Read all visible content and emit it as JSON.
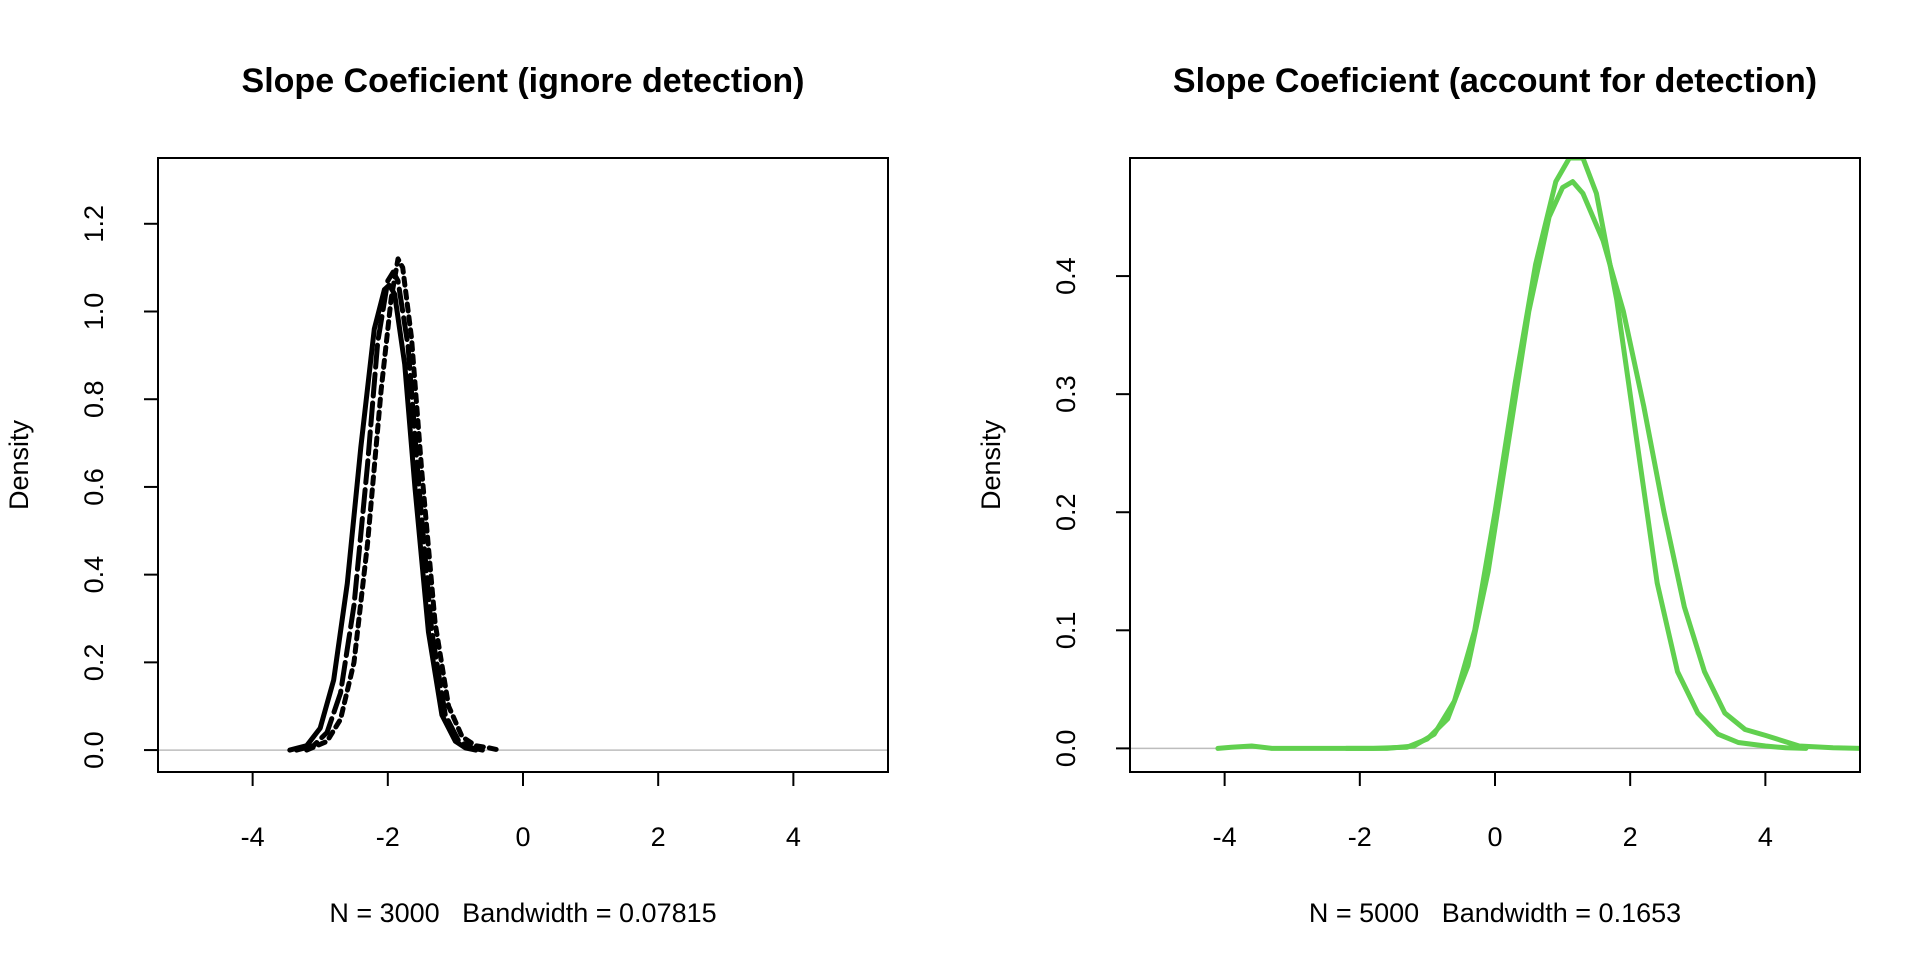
{
  "chart_data": [
    {
      "type": "line",
      "title": "Slope Coeficient (ignore detection)",
      "xlabel": "N = 3000   Bandwidth = 0.07815",
      "ylabel": "Density",
      "xlim": [
        -5.4,
        5.4
      ],
      "ylim": [
        -0.05,
        1.35
      ],
      "x_ticks": [
        -4,
        -2,
        0,
        2,
        4
      ],
      "y_ticks": [
        0.0,
        0.2,
        0.4,
        0.6,
        0.8,
        1.0,
        1.2
      ],
      "baseline": 0,
      "grid": false,
      "legend": "none",
      "series": [
        {
          "color": "#000000",
          "style": "solid",
          "x": [
            -3.45,
            -3.2,
            -3.0,
            -2.8,
            -2.6,
            -2.4,
            -2.2,
            -2.05,
            -1.98,
            -1.9,
            -1.75,
            -1.6,
            -1.4,
            -1.2,
            -1.0,
            -0.85,
            -0.7
          ],
          "y": [
            0.0,
            0.01,
            0.05,
            0.16,
            0.38,
            0.69,
            0.96,
            1.05,
            1.06,
            1.04,
            0.88,
            0.6,
            0.27,
            0.08,
            0.02,
            0.005,
            0.0
          ]
        },
        {
          "color": "#000000",
          "style": "dashed",
          "x": [
            -3.35,
            -3.1,
            -2.9,
            -2.7,
            -2.5,
            -2.3,
            -2.15,
            -2.0,
            -1.92,
            -1.85,
            -1.7,
            -1.55,
            -1.35,
            -1.15,
            -0.95,
            -0.75,
            -0.6
          ],
          "y": [
            0.0,
            0.01,
            0.04,
            0.13,
            0.33,
            0.65,
            0.93,
            1.07,
            1.09,
            1.07,
            0.92,
            0.62,
            0.27,
            0.08,
            0.02,
            0.005,
            0.0
          ]
        },
        {
          "color": "#000000",
          "style": "dotted",
          "x": [
            -3.2,
            -2.9,
            -2.7,
            -2.5,
            -2.3,
            -2.1,
            -1.95,
            -1.85,
            -1.78,
            -1.65,
            -1.5,
            -1.3,
            -1.1,
            -0.9,
            -0.7,
            -0.5,
            -0.35
          ],
          "y": [
            0.0,
            0.02,
            0.07,
            0.2,
            0.47,
            0.82,
            1.03,
            1.12,
            1.1,
            0.94,
            0.64,
            0.29,
            0.1,
            0.03,
            0.01,
            0.005,
            0.0
          ]
        }
      ]
    },
    {
      "type": "line",
      "title": "Slope Coeficient (account for detection)",
      "xlabel": "N = 5000   Bandwidth = 0.1653",
      "ylabel": "Density",
      "xlim": [
        -5.4,
        5.4
      ],
      "ylim": [
        -0.02,
        0.5
      ],
      "x_ticks": [
        -4,
        -2,
        0,
        2,
        4
      ],
      "y_ticks": [
        0.0,
        0.1,
        0.2,
        0.3,
        0.4
      ],
      "baseline": 0,
      "grid": false,
      "legend": "none",
      "series": [
        {
          "color": "#61D04F",
          "style": "solid",
          "x": [
            -4.1,
            -3.9,
            -3.6,
            -3.3,
            -2.5,
            -1.8,
            -1.3,
            -1.0,
            -0.7,
            -0.4,
            -0.1,
            0.2,
            0.5,
            0.8,
            1.0,
            1.15,
            1.3,
            1.6,
            1.9,
            2.2,
            2.5,
            2.8,
            3.1,
            3.4,
            3.7,
            4.0,
            4.5,
            5.0,
            5.4
          ],
          "y": [
            0.0,
            0.001,
            0.002,
            0.0,
            0.0,
            0.0,
            0.001,
            0.008,
            0.025,
            0.07,
            0.15,
            0.26,
            0.37,
            0.45,
            0.475,
            0.48,
            0.47,
            0.43,
            0.37,
            0.29,
            0.2,
            0.12,
            0.065,
            0.03,
            0.016,
            0.011,
            0.002,
            0.0005,
            0.0
          ]
        },
        {
          "color": "#61D04F",
          "style": "solid",
          "x": [
            -2.2,
            -1.6,
            -1.2,
            -0.9,
            -0.6,
            -0.3,
            0.0,
            0.3,
            0.6,
            0.9,
            1.1,
            1.3,
            1.5,
            1.8,
            2.1,
            2.4,
            2.7,
            3.0,
            3.3,
            3.6,
            4.0,
            4.3,
            4.6
          ],
          "y": [
            0.0,
            0.0,
            0.002,
            0.012,
            0.04,
            0.1,
            0.2,
            0.31,
            0.41,
            0.48,
            0.5,
            0.5,
            0.47,
            0.38,
            0.26,
            0.14,
            0.065,
            0.03,
            0.012,
            0.005,
            0.002,
            0.0005,
            0.0
          ]
        }
      ]
    }
  ]
}
